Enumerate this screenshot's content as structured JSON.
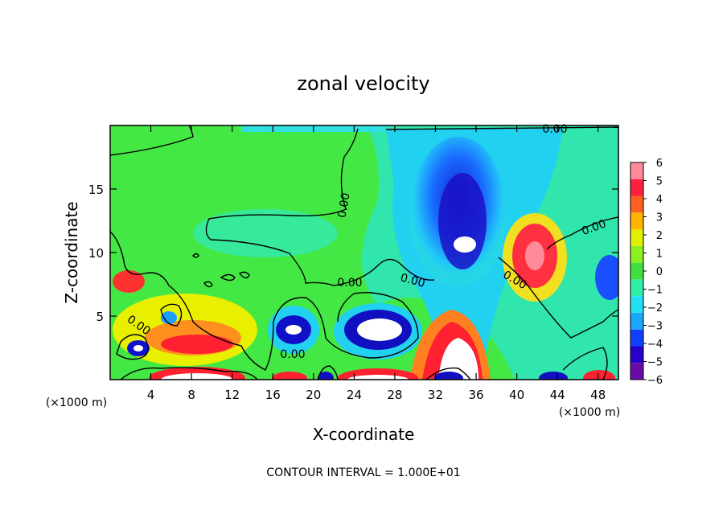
{
  "chart_data": {
    "type": "heatmap",
    "title": "zonal velocity",
    "xlabel": "X-coordinate",
    "ylabel": "Z-coordinate",
    "x_unit_left": "(×1000 m)",
    "x_unit_right": "(×1000 m)",
    "xlim": [
      0,
      50
    ],
    "ylim": [
      0,
      20
    ],
    "x_ticks": [
      4,
      8,
      12,
      16,
      20,
      24,
      28,
      32,
      36,
      40,
      44,
      48
    ],
    "x_tick_labels": [
      "4",
      "8",
      "12",
      "16",
      "20",
      "24",
      "28",
      "32",
      "36",
      "40",
      "44",
      "48"
    ],
    "y_ticks": [
      5,
      10,
      15
    ],
    "y_tick_labels": [
      "5",
      "10",
      "15"
    ],
    "colorbar": {
      "min": -6,
      "max": 6,
      "tick_labels": [
        "6",
        "5",
        "4",
        "3",
        "2",
        "1",
        "0",
        "−1",
        "−2",
        "−3",
        "−4",
        "−5",
        "−6"
      ],
      "colors": [
        "#6a0aa8",
        "#2800c8",
        "#1040ff",
        "#1aa6ff",
        "#22e0f0",
        "#30f0a8",
        "#40e040",
        "#8cf020",
        "#e0f000",
        "#ffb400",
        "#ff6020",
        "#ff2040",
        "#ff8a9a"
      ]
    },
    "contour_labels": [
      "0.00",
      "0.00",
      "0.00",
      "0.00",
      "0.00",
      "0.00",
      "0.00",
      "0.00"
    ],
    "contour_interval_label": "CONTOUR INTERVAL = 1.000E+01",
    "features": [
      {
        "x": 34.5,
        "z": 14,
        "value": -5
      },
      {
        "x": 34.5,
        "z": 10.5,
        "value": -6.5
      },
      {
        "x": 42,
        "z": 10,
        "value": 5
      },
      {
        "x": 26,
        "z": 4.2,
        "value": -6.5
      },
      {
        "x": 34,
        "z": 2,
        "value": 6.5
      },
      {
        "x": 18,
        "z": 3.8,
        "value": -6
      },
      {
        "x": 2.8,
        "z": 2.2,
        "value": -5.5
      },
      {
        "x": 2.5,
        "z": 8,
        "value": 4.5
      },
      {
        "x": 8.5,
        "z": 2.5,
        "value": 4.5
      },
      {
        "x": 9,
        "z": 0.2,
        "value": 6.5
      },
      {
        "x": 5.8,
        "z": 4.1,
        "value": -3
      },
      {
        "x": 49.5,
        "z": 8,
        "value": -4
      },
      {
        "x": 22,
        "z": 0.2,
        "value": -4
      }
    ]
  }
}
